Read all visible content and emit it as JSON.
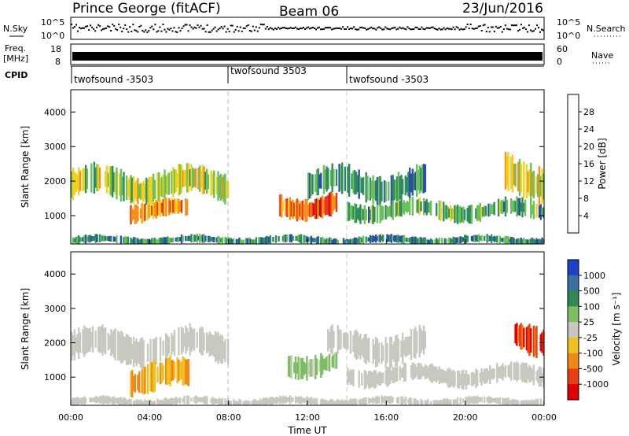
{
  "header": {
    "station": "Prince George (fitACF)",
    "beam": "Beam 06",
    "date": "23/Jun/2016"
  },
  "strips": {
    "nsky_label": "N.Sky",
    "nsky_ticks": [
      "10^5",
      "10^0"
    ],
    "nsearch_label": "N.Search",
    "freq_label_1": "Freq.",
    "freq_label_2": "[MHz]",
    "freq_ticks": [
      "18",
      "8"
    ],
    "nave_label": "Nave",
    "nave_ticks": [
      "60",
      "0"
    ],
    "cpid_label": "CPID",
    "cpid_segments": [
      "twofsound -3503",
      "twofsound 3503",
      "twofsound -3503"
    ]
  },
  "axes": {
    "x_ticks": [
      "00:00",
      "04:00",
      "08:00",
      "12:00",
      "16:00",
      "20:00",
      "00:00"
    ],
    "x_label": "Time UT",
    "y_ticks": [
      "1000",
      "2000",
      "3000",
      "4000"
    ],
    "y_label": "Slant Range [km]"
  },
  "colorbars": {
    "power": {
      "label": "Power [dB]",
      "ticks": [
        "4",
        "8",
        "12",
        "16",
        "20",
        "24",
        "28"
      ],
      "colors": [
        "#1a20e6",
        "#2a4fa8",
        "#2f8a60",
        "#6cc05a",
        "#f0d020",
        "#f59018",
        "#e83a18",
        "#dd0000"
      ]
    },
    "velocity": {
      "label": "Velocity [m s⁻¹]",
      "ticks": [
        "1000",
        "500",
        "100",
        "25",
        "-25",
        "-100",
        "-500",
        "-1000"
      ],
      "colors": [
        "#2040c8",
        "#3a70a0",
        "#2f8a50",
        "#7cbf60",
        "#c8c8c0",
        "#f0c020",
        "#f08818",
        "#e84010",
        "#e00000"
      ]
    }
  },
  "chart_data": [
    {
      "type": "heatmap",
      "quantity": "Power",
      "unit": "dB",
      "xlim": [
        "00:00",
        "24:00"
      ],
      "ylim": [
        180,
        4600
      ],
      "scale": [
        0,
        32
      ],
      "bands": [
        {
          "t": [
            0.0,
            8.0
          ],
          "r": [
            1500,
            2300
          ],
          "v": 16
        },
        {
          "t": [
            3.0,
            6.0
          ],
          "r": [
            900,
            1400
          ],
          "v": 22
        },
        {
          "t": [
            10.5,
            13.5
          ],
          "r": [
            1000,
            1600
          ],
          "v": 24
        },
        {
          "t": [
            12.0,
            18.0
          ],
          "r": [
            1500,
            2300
          ],
          "v": 11
        },
        {
          "t": [
            14.0,
            24.0
          ],
          "r": [
            900,
            1400
          ],
          "v": 12
        },
        {
          "t": [
            22.0,
            24.0
          ],
          "r": [
            1600,
            2600
          ],
          "v": 18
        },
        {
          "t": [
            0.0,
            24.0
          ],
          "r": [
            180,
            400
          ],
          "v": 10
        }
      ]
    },
    {
      "type": "heatmap",
      "quantity": "Velocity",
      "unit": "m/s",
      "xlim": [
        "00:00",
        "24:00"
      ],
      "ylim": [
        180,
        4600
      ],
      "scale": [
        -1000,
        1000
      ],
      "bands": [
        {
          "t": [
            0.0,
            8.0
          ],
          "r": [
            1500,
            2300
          ],
          "v": 0
        },
        {
          "t": [
            3.0,
            6.0
          ],
          "r": [
            600,
            1400
          ],
          "v": -300
        },
        {
          "t": [
            11.0,
            13.5
          ],
          "r": [
            1100,
            1700
          ],
          "v": 150
        },
        {
          "t": [
            13.0,
            18.0
          ],
          "r": [
            1500,
            2300
          ],
          "v": 0
        },
        {
          "t": [
            14.0,
            24.0
          ],
          "r": [
            800,
            1300
          ],
          "v": 0
        },
        {
          "t": [
            22.5,
            24.0
          ],
          "r": [
            1800,
            2600
          ],
          "v": -800
        },
        {
          "t": [
            0.0,
            24.0
          ],
          "r": [
            180,
            400
          ],
          "v": 60
        }
      ]
    }
  ]
}
